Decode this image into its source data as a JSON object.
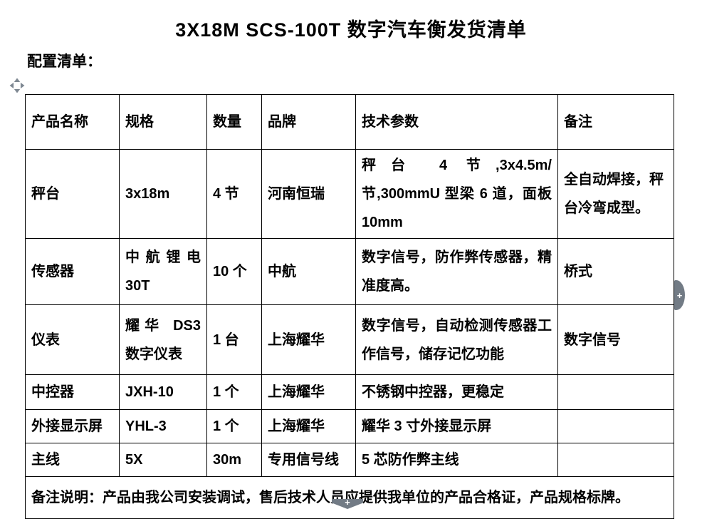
{
  "page": {
    "title": "3X18M SCS-100T 数字汽车衡发货清单",
    "subtitle": "配置清单："
  },
  "table": {
    "headers": [
      "产品名称",
      "规格",
      "数量",
      "品牌",
      "技术参数",
      "备注"
    ],
    "rows": [
      [
        "秤台",
        "3x18m",
        "4 节",
        "河南恒瑞",
        "秤台 4 节,3x4.5m/节,300mmU 型梁 6 道，面板 10mm",
        "全自动焊接，秤台冷弯成型。"
      ],
      [
        "传感器",
        "中航锂电 30T",
        "10 个",
        "中航",
        "数字信号，防作弊传感器，精准度高。",
        "桥式"
      ],
      [
        "仪表",
        "耀华 DS3 数字仪表",
        "1 台",
        "上海耀华",
        "数字信号，自动检测传感器工作信号，储存记忆功能",
        "数字信号"
      ],
      [
        "中控器",
        "JXH-10",
        "1 个",
        "上海耀华",
        "不锈钢中控器，更稳定",
        ""
      ],
      [
        "外接显示屏",
        "YHL-3",
        "1 个",
        "上海耀华",
        "耀华 3 寸外接显示屏",
        ""
      ],
      [
        "主线",
        "5X",
        "30m",
        "专用信号线",
        "5 芯防作弊主线",
        ""
      ]
    ],
    "footer_note": "备注说明：产品由我公司安装调试，售后技术人员应提供我单位的产品合格证，产品规格标牌。"
  },
  "controls": {
    "add_column_glyph": "+",
    "add_row_glyph": "+"
  },
  "colors": {
    "text": "#000000",
    "border": "#000000",
    "handle_gray": "#727b85"
  }
}
